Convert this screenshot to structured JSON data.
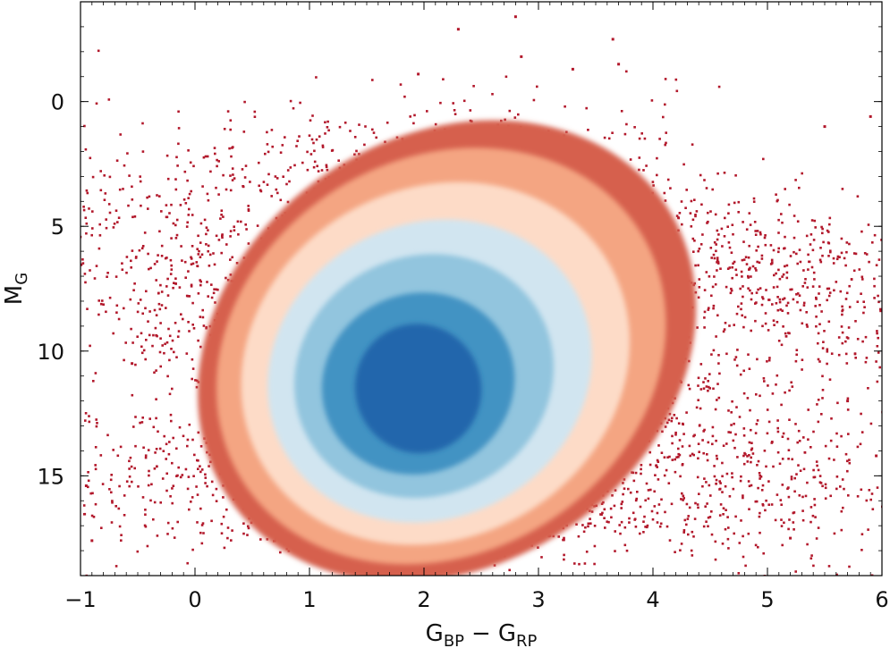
{
  "chart_data": {
    "type": "scatter",
    "subtype": "density-colored color-magnitude diagram",
    "title": "",
    "xlabel": {
      "main": "G",
      "sub1": "BP",
      "minus": "−",
      "main2": "G",
      "sub2": "RP"
    },
    "ylabel": {
      "main": "M",
      "sub": "G"
    },
    "xlim": [
      -1,
      6
    ],
    "ylim": [
      19,
      -4
    ],
    "y_inverted": true,
    "grid": false,
    "x_ticks": [
      {
        "value": -1,
        "label": "−1"
      },
      {
        "value": 0,
        "label": "0"
      },
      {
        "value": 1,
        "label": "1"
      },
      {
        "value": 2,
        "label": "2"
      },
      {
        "value": 3,
        "label": "3"
      },
      {
        "value": 4,
        "label": "4"
      },
      {
        "value": 5,
        "label": "5"
      },
      {
        "value": 6,
        "label": "6"
      }
    ],
    "y_ticks": [
      {
        "value": 0,
        "label": "0"
      },
      {
        "value": 5,
        "label": "5"
      },
      {
        "value": 10,
        "label": "10"
      },
      {
        "value": 15,
        "label": "15"
      }
    ],
    "density_peak": {
      "x": 1.9,
      "y": 11.8
    },
    "density_levels": [
      {
        "level": 7,
        "color": "#2166ac",
        "center": [
          1.95,
          11.5
        ],
        "radius": [
          0.55,
          2.6
        ],
        "rotate": -20
      },
      {
        "level": 6,
        "color": "#4393c3",
        "center": [
          1.95,
          11.3
        ],
        "radius": [
          0.85,
          3.6
        ],
        "rotate": -22
      },
      {
        "level": 5,
        "color": "#92c5de",
        "center": [
          2.0,
          11.0
        ],
        "radius": [
          1.15,
          4.8
        ],
        "rotate": -25
      },
      {
        "level": 4,
        "color": "#d1e5f0",
        "center": [
          2.05,
          10.8
        ],
        "radius": [
          1.45,
          5.9
        ],
        "rotate": -28
      },
      {
        "level": 3,
        "color": "#fddbc7",
        "center": [
          2.1,
          10.5
        ],
        "radius": [
          1.75,
          7.0
        ],
        "rotate": -30
      },
      {
        "level": 2,
        "color": "#f4a582",
        "center": [
          2.15,
          10.2
        ],
        "radius": [
          2.05,
          7.9
        ],
        "rotate": -32
      },
      {
        "level": 1,
        "color": "#d6604d",
        "center": [
          2.2,
          10.0
        ],
        "radius": [
          2.3,
          8.6
        ],
        "rotate": -34
      }
    ],
    "sparse_point_color": "#b2182b",
    "outlier_points": [
      {
        "x": 2.8,
        "y": -3.4
      },
      {
        "x": 2.3,
        "y": -2.9
      },
      {
        "x": 3.65,
        "y": -2.5
      },
      {
        "x": 2.85,
        "y": -1.8
      },
      {
        "x": 3.7,
        "y": -1.5
      },
      {
        "x": 3.3,
        "y": -1.3
      },
      {
        "x": 1.95,
        "y": -1.1
      },
      {
        "x": 5.5,
        "y": 1.0
      },
      {
        "x": 5.9,
        "y": 0.6
      },
      {
        "x": -0.55,
        "y": 10.5
      },
      {
        "x": -0.9,
        "y": 17.6
      },
      {
        "x": -0.95,
        "y": 15.4
      },
      {
        "x": 5.2,
        "y": 17.5
      },
      {
        "x": 5.95,
        "y": 14.2
      },
      {
        "x": 5.7,
        "y": 12.0
      }
    ]
  }
}
